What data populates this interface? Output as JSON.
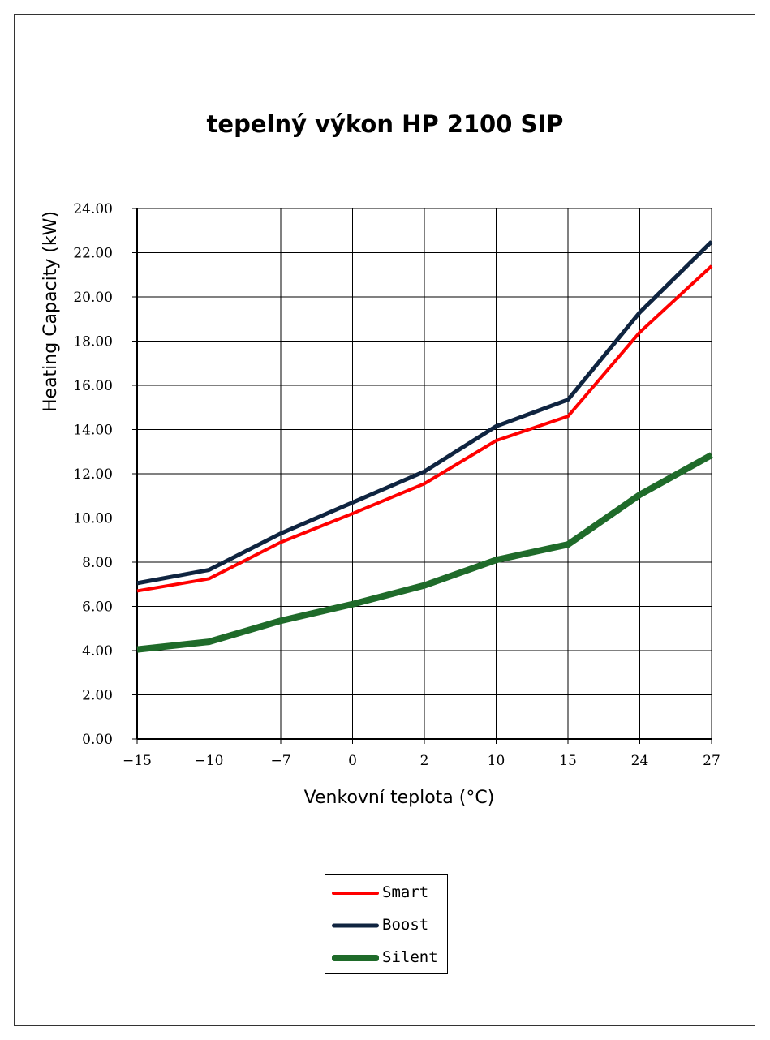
{
  "chart_data": {
    "type": "line",
    "title": "tepelný výkon HP 2100 SIP",
    "xlabel": "Venkovní teplota (°C)",
    "ylabel": "Heating Capacity (kW)",
    "x": [
      "-15",
      "-10",
      "-7",
      "0",
      "2",
      "10",
      "15",
      "24",
      "27"
    ],
    "ylim": [
      0,
      24
    ],
    "yticks": [
      "0.00",
      "2.00",
      "4.00",
      "6.00",
      "8.00",
      "10.00",
      "12.00",
      "14.00",
      "16.00",
      "18.00",
      "20.00",
      "22.00",
      "24.00"
    ],
    "grid": true,
    "legend_position": "bottom-center",
    "series": [
      {
        "name": "Smart",
        "color": "#ff0000",
        "values": [
          6.7,
          7.25,
          8.9,
          10.2,
          11.55,
          13.5,
          14.6,
          18.4,
          21.4
        ]
      },
      {
        "name": "Boost",
        "color": "#0f2440",
        "values": [
          7.05,
          7.65,
          9.3,
          10.7,
          12.1,
          14.15,
          15.35,
          19.3,
          22.5
        ]
      },
      {
        "name": "Silent",
        "color": "#1f6b2a",
        "values": [
          4.05,
          4.4,
          5.35,
          6.1,
          6.95,
          8.1,
          8.8,
          11.05,
          12.85
        ]
      }
    ]
  }
}
